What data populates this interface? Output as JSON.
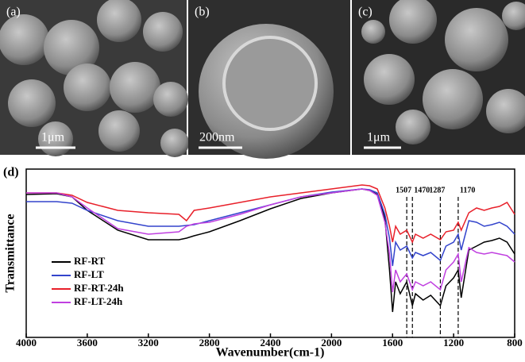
{
  "panels": [
    {
      "label": "(a)",
      "scale_bar": "1μm"
    },
    {
      "label": "(b)",
      "scale_bar": "200nm"
    },
    {
      "label": "(c)",
      "scale_bar": "1μm"
    }
  ],
  "chart_data": {
    "type": "line",
    "panel_label": "(d)",
    "xlabel": "Wavenumber(cm-1)",
    "ylabel": "Transmittance",
    "x": [
      4000,
      3800,
      3700,
      3600,
      3400,
      3200,
      3000,
      2950,
      2900,
      2800,
      2600,
      2400,
      2200,
      2000,
      1800,
      1750,
      1700,
      1650,
      1620,
      1600,
      1580,
      1550,
      1507,
      1470,
      1450,
      1400,
      1350,
      1287,
      1250,
      1200,
      1170,
      1150,
      1100,
      1050,
      1000,
      950,
      900,
      850,
      800
    ],
    "xlim": [
      4000,
      800
    ],
    "xticks": [
      4000,
      3600,
      3200,
      2800,
      2400,
      2000,
      1600,
      1200,
      800
    ],
    "ylim": [
      0,
      212
    ],
    "vlines": [
      1507,
      1470,
      1287,
      1170
    ],
    "legend": "lower left",
    "series": [
      {
        "name": "RF-RT",
        "color": "#000000",
        "values": [
          180,
          181,
          177,
          160,
          135,
          123,
          123,
          125,
          128,
          133,
          147,
          162,
          175,
          182,
          187,
          185,
          180,
          150,
          85,
          32,
          70,
          55,
          70,
          40,
          55,
          47,
          53,
          40,
          65,
          75,
          85,
          50,
          110,
          115,
          120,
          122,
          125,
          120,
          105
        ]
      },
      {
        "name": "RF-LT",
        "color": "#3344cc",
        "values": [
          171,
          171,
          169,
          160,
          147,
          140,
          140,
          141,
          142,
          147,
          157,
          167,
          177,
          183,
          187,
          186,
          182,
          155,
          125,
          90,
          120,
          110,
          115,
          100,
          107,
          103,
          107,
          97,
          115,
          120,
          130,
          110,
          147,
          145,
          140,
          142,
          145,
          140,
          130
        ]
      },
      {
        "name": "RF-RT-24h",
        "color": "#e8202a",
        "values": [
          182,
          182,
          179,
          170,
          160,
          157,
          155,
          147,
          160,
          163,
          170,
          177,
          182,
          187,
          192,
          191,
          187,
          163,
          140,
          120,
          140,
          130,
          135,
          120,
          130,
          125,
          130,
          123,
          133,
          135,
          145,
          135,
          157,
          163,
          160,
          163,
          165,
          170,
          155
        ]
      },
      {
        "name": "RF-LT-24h",
        "color": "#c040e0",
        "values": [
          182,
          182,
          177,
          163,
          137,
          130,
          133,
          140,
          143,
          145,
          155,
          167,
          177,
          182,
          187,
          185,
          179,
          145,
          105,
          57,
          85,
          70,
          80,
          60,
          70,
          65,
          70,
          60,
          85,
          95,
          105,
          70,
          113,
          107,
          105,
          107,
          105,
          103,
          95
        ]
      }
    ]
  }
}
